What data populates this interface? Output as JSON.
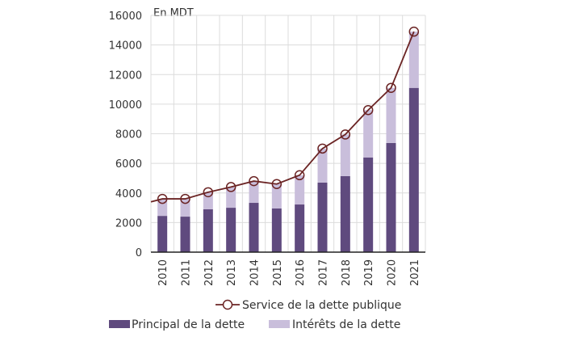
{
  "chart_data": {
    "type": "bar",
    "stacked": true,
    "unit_label": "En MDT",
    "categories": [
      "2010",
      "2011",
      "2012",
      "2013",
      "2014",
      "2015",
      "2016",
      "2017",
      "2018",
      "2019",
      "2020",
      "2021"
    ],
    "series": [
      {
        "name": "Principal de la dette",
        "type": "bar",
        "color": "#5f4a7e",
        "values": [
          2450,
          2400,
          2900,
          3000,
          3330,
          2950,
          3220,
          4700,
          5140,
          6400,
          7380,
          11100
        ]
      },
      {
        "name": "Intérêts de la dette",
        "type": "bar",
        "color": "#c9bedb",
        "values": [
          1150,
          1200,
          1150,
          1400,
          1470,
          1650,
          1980,
          2300,
          2810,
          3200,
          3720,
          3800
        ]
      },
      {
        "name": "Service de la dette publique",
        "type": "line",
        "color": "#6b2424",
        "values": [
          3600,
          3600,
          4050,
          4400,
          4800,
          4600,
          5200,
          7000,
          7950,
          9600,
          11100,
          14900
        ]
      }
    ],
    "yticks": [
      0,
      2000,
      4000,
      6000,
      8000,
      10000,
      12000,
      14000,
      16000
    ],
    "ylim": [
      0,
      16000
    ],
    "grid": true,
    "legend": "bottom"
  }
}
